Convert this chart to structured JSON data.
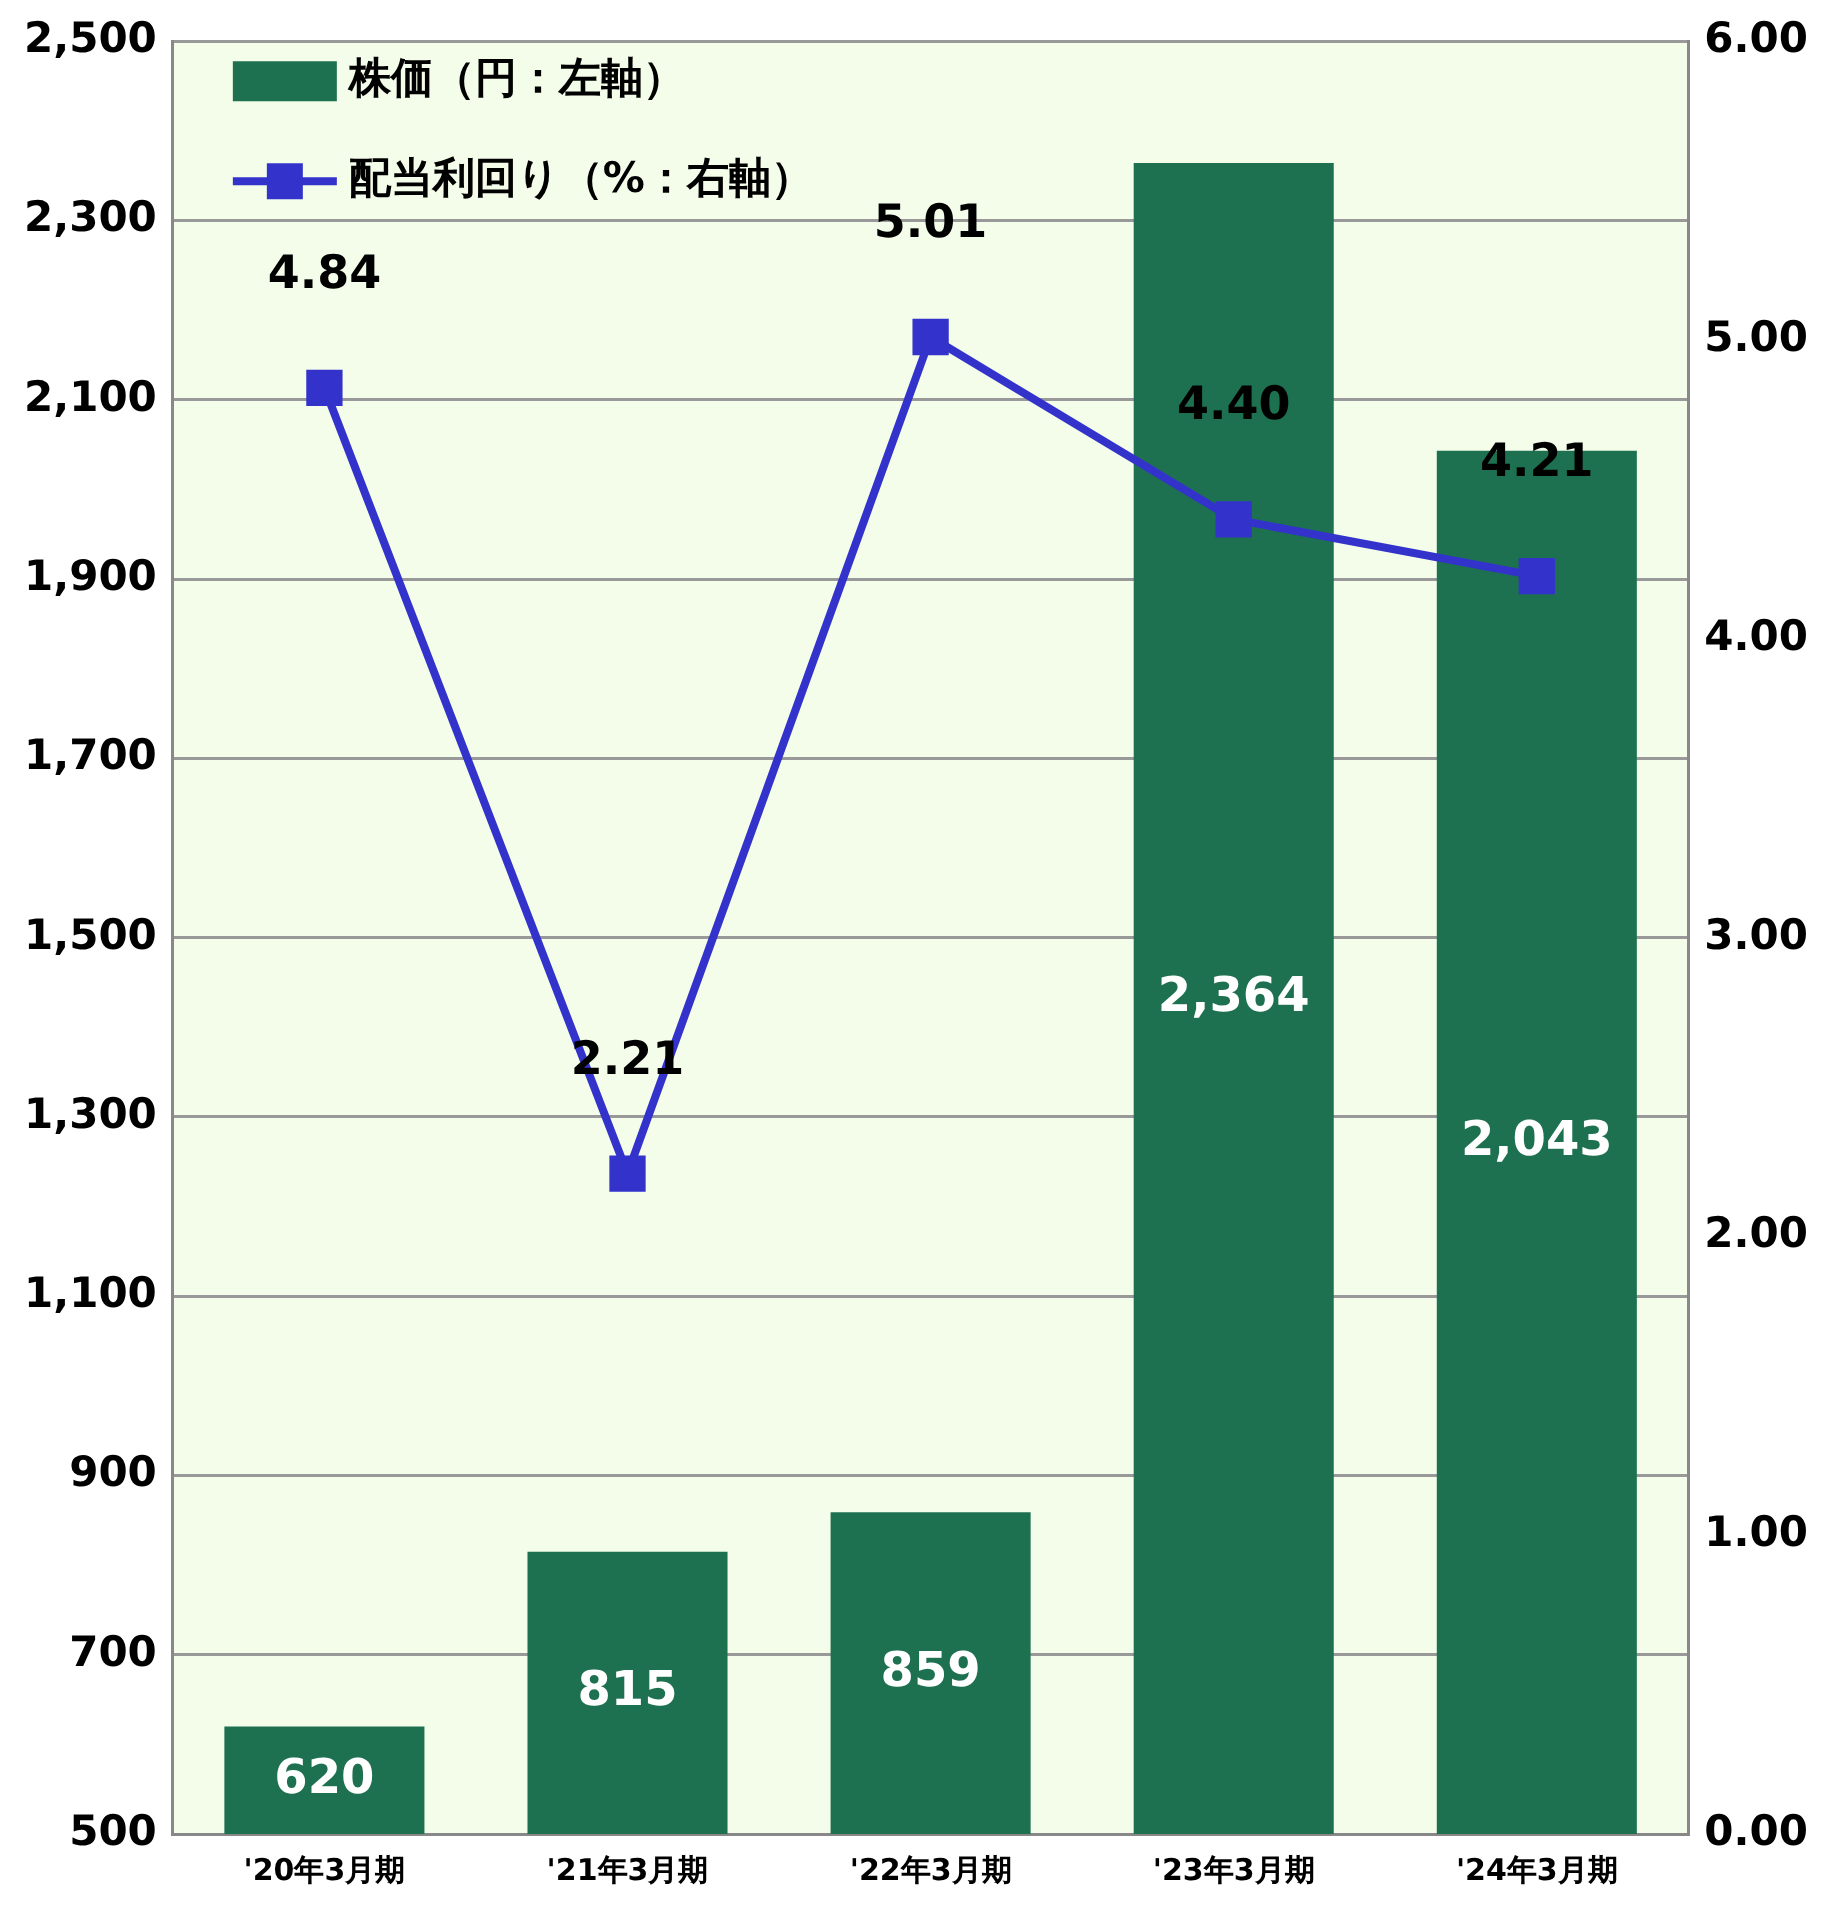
{
  "chart_data": {
    "type": "bar",
    "categories": [
      "'20年3月期",
      "'21年3月期",
      "'22年3月期",
      "'23年3月期",
      "'24年3月期"
    ],
    "series": [
      {
        "name": "株価（円：左軸）",
        "color": "#1e7150",
        "values": [
          620,
          815,
          859,
          2364,
          2043
        ],
        "value_labels": [
          "620",
          "815",
          "859",
          "2,364",
          "2,043"
        ]
      },
      {
        "name": "配当利回り（%：右軸）",
        "type": "line",
        "axis": "y2",
        "color": "#3333cc",
        "values": [
          4.84,
          2.21,
          5.01,
          4.4,
          4.21
        ],
        "value_labels": [
          "4.84",
          "2.21",
          "5.01",
          "4.40",
          "4.21"
        ]
      }
    ],
    "ylim": [
      500,
      2500
    ],
    "yticks": [
      500,
      700,
      900,
      {
        "value": 1100,
        "label": "1,100"
      },
      {
        "value": 1300,
        "label": "1,300"
      },
      {
        "value": 1500,
        "label": "1,500"
      },
      {
        "value": 1700,
        "label": "1,700"
      },
      {
        "value": 1900,
        "label": "1,900"
      },
      {
        "value": 2100,
        "label": "2,100"
      },
      {
        "value": 2300,
        "label": "2,300"
      },
      {
        "value": 2500,
        "label": "2,500"
      }
    ],
    "y2lim": [
      0,
      6
    ],
    "y2ticks": [
      {
        "value": 0,
        "label": "0.00"
      },
      {
        "value": 1,
        "label": "1.00"
      },
      {
        "value": 2,
        "label": "2.00"
      },
      {
        "value": 3,
        "label": "3.00"
      },
      {
        "value": 4,
        "label": "4.00"
      },
      {
        "value": 5,
        "label": "5.00"
      },
      {
        "value": 6,
        "label": "6.00"
      }
    ],
    "grid": "y",
    "legend": "top left",
    "marker": "square",
    "line_style": "solid"
  }
}
